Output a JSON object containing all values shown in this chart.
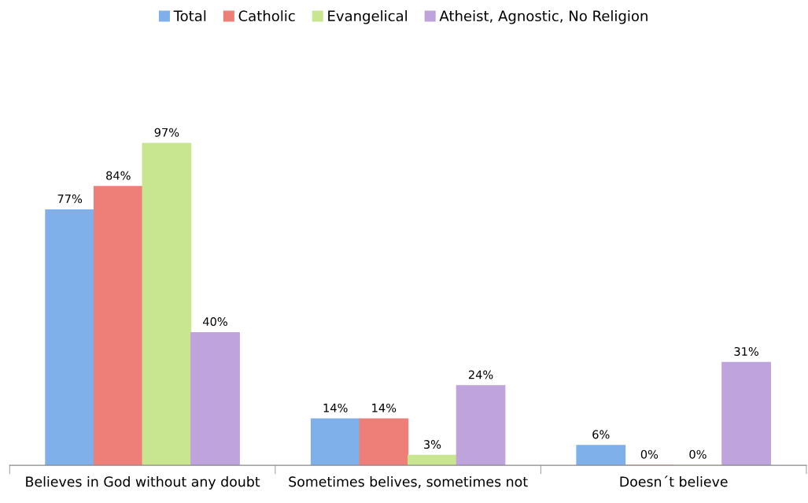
{
  "chart_data": {
    "type": "bar",
    "categories": [
      "Believes in God without any doubt",
      "Sometimes belives, sometimes not",
      "Doesn´t believe"
    ],
    "series": [
      {
        "name": "Total",
        "color": "#7fb0ea",
        "values": [
          77,
          14,
          6
        ],
        "value_labels": [
          "77%",
          "14%",
          "6%"
        ]
      },
      {
        "name": "Catholic",
        "color": "#ee7f78",
        "values": [
          84,
          14,
          0
        ],
        "value_labels": [
          "84%",
          "14%",
          "0%"
        ]
      },
      {
        "name": "Evangelical",
        "color": "#c8e690",
        "values": [
          97,
          3,
          0
        ],
        "value_labels": [
          "97%",
          "3%",
          "0%"
        ]
      },
      {
        "name": "Atheist, Agnostic, No Religion",
        "color": "#bfa3dd",
        "values": [
          40,
          24,
          31
        ],
        "value_labels": [
          "40%",
          "24%",
          "31%"
        ]
      }
    ],
    "tick_labels": "x",
    "legend": "top",
    "grid": false
  }
}
